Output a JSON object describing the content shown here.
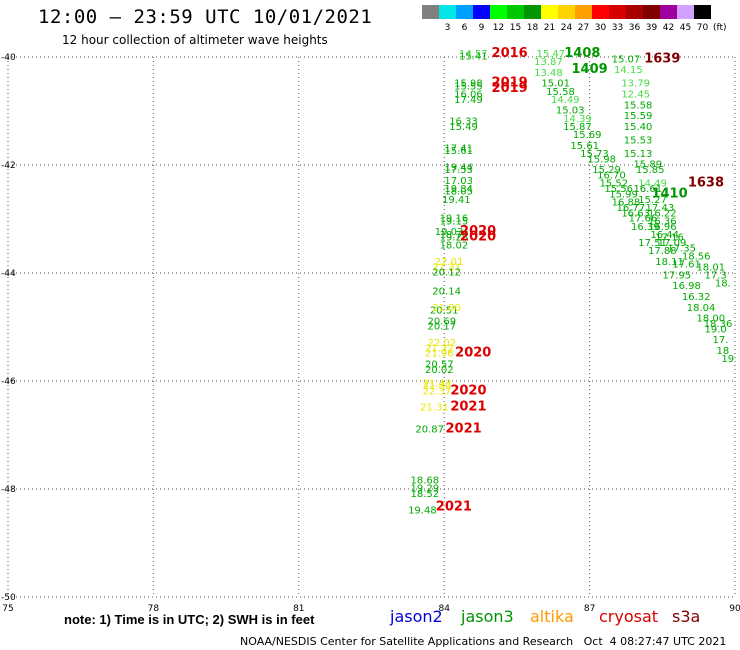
{
  "header": {
    "title": "12:00 – 23:59 UTC 10/01/2021",
    "subtitle": "12 hour collection of altimeter wave heights"
  },
  "legend": {
    "unit": "(ft)",
    "bins": [
      {
        "label": "",
        "color": "#808080"
      },
      {
        "label": "3",
        "color": "#00e5e5"
      },
      {
        "label": "6",
        "color": "#00a0ff"
      },
      {
        "label": "9",
        "color": "#0000ff"
      },
      {
        "label": "12",
        "color": "#00ff00"
      },
      {
        "label": "15",
        "color": "#00c800"
      },
      {
        "label": "18",
        "color": "#009600"
      },
      {
        "label": "21",
        "color": "#ffff00"
      },
      {
        "label": "24",
        "color": "#ffd200"
      },
      {
        "label": "27",
        "color": "#ffa000"
      },
      {
        "label": "30",
        "color": "#ff0000"
      },
      {
        "label": "33",
        "color": "#d70000"
      },
      {
        "label": "36",
        "color": "#aa0000"
      },
      {
        "label": "39",
        "color": "#800000"
      },
      {
        "label": "42",
        "color": "#a000a0"
      },
      {
        "label": "45",
        "color": "#d2a0ff"
      },
      {
        "label": "70",
        "color": "#000000"
      }
    ]
  },
  "axes": {
    "y_ticks": [
      "-40",
      "-42",
      "-44",
      "-46",
      "-48",
      "-50"
    ],
    "x_ticks": [
      "75",
      "78",
      "81",
      "84",
      "87",
      "90"
    ]
  },
  "map": {
    "lon_range": [
      75,
      90
    ],
    "lat_range": [
      -50,
      -40
    ]
  },
  "swh_labels": [
    {
      "text": "14.57",
      "lat": -40.0,
      "lon": 84.6,
      "color": "#44dd44"
    },
    {
      "text": "15.41",
      "lat": -40.05,
      "lon": 84.6,
      "color": "#00aa00"
    },
    {
      "text": "2016",
      "lat": -40.0,
      "lon": 85.35,
      "color": "#dd0000",
      "bold": true
    },
    {
      "text": "15.47",
      "lat": -40.0,
      "lon": 86.2,
      "color": "#44dd44"
    },
    {
      "text": "13.87",
      "lat": -40.15,
      "lon": 86.15,
      "color": "#44dd44"
    },
    {
      "text": "1408",
      "lat": -40.0,
      "lon": 86.85,
      "color": "#009600",
      "bold": true
    },
    {
      "text": "15.07",
      "lat": -40.1,
      "lon": 87.75,
      "color": "#00aa00"
    },
    {
      "text": "1639",
      "lat": -40.1,
      "lon": 88.5,
      "color": "#800000",
      "bold": true
    },
    {
      "text": "13.48",
      "lat": -40.35,
      "lon": 86.15,
      "color": "#44dd44"
    },
    {
      "text": "1409",
      "lat": -40.3,
      "lon": 87.0,
      "color": "#009600",
      "bold": true
    },
    {
      "text": "14.15",
      "lat": -40.3,
      "lon": 87.8,
      "color": "#44dd44"
    },
    {
      "text": "15.01",
      "lat": -40.55,
      "lon": 86.3,
      "color": "#00aa00"
    },
    {
      "text": "13.79",
      "lat": -40.55,
      "lon": 87.95,
      "color": "#44dd44"
    },
    {
      "text": "15.98",
      "lat": -40.55,
      "lon": 84.5,
      "color": "#00aa00"
    },
    {
      "text": "2019",
      "lat": -40.55,
      "lon": 85.35,
      "color": "#dd0000",
      "bold": true
    },
    {
      "text": "15.55",
      "lat": -40.6,
      "lon": 84.5,
      "color": "#00aa00"
    },
    {
      "text": "2019",
      "lat": -40.65,
      "lon": 85.35,
      "color": "#dd0000",
      "bold": true
    },
    {
      "text": "15.58",
      "lat": -40.7,
      "lon": 86.4,
      "color": "#00aa00"
    },
    {
      "text": "12.45",
      "lat": -40.75,
      "lon": 87.95,
      "color": "#44dd44"
    },
    {
      "text": "16.06",
      "lat": -40.75,
      "lon": 84.5,
      "color": "#00aa00"
    },
    {
      "text": "17.49",
      "lat": -40.85,
      "lon": 84.5,
      "color": "#00aa00"
    },
    {
      "text": "14.49",
      "lat": -40.85,
      "lon": 86.5,
      "color": "#44dd44"
    },
    {
      "text": "15.58",
      "lat": -40.95,
      "lon": 88.0,
      "color": "#00aa00"
    },
    {
      "text": "15.03",
      "lat": -41.05,
      "lon": 86.6,
      "color": "#00aa00"
    },
    {
      "text": "15.59",
      "lat": -41.15,
      "lon": 88.0,
      "color": "#00aa00"
    },
    {
      "text": "16.33",
      "lat": -41.25,
      "lon": 84.4,
      "color": "#00aa00"
    },
    {
      "text": "14.39",
      "lat": -41.2,
      "lon": 86.75,
      "color": "#44dd44"
    },
    {
      "text": "15.49",
      "lat": -41.35,
      "lon": 84.4,
      "color": "#00aa00"
    },
    {
      "text": "15.87",
      "lat": -41.35,
      "lon": 86.75,
      "color": "#00aa00"
    },
    {
      "text": "15.40",
      "lat": -41.35,
      "lon": 88.0,
      "color": "#00aa00"
    },
    {
      "text": "15.69",
      "lat": -41.5,
      "lon": 86.95,
      "color": "#00aa00"
    },
    {
      "text": "15.53",
      "lat": -41.6,
      "lon": 88.0,
      "color": "#00aa00"
    },
    {
      "text": "15.61",
      "lat": -41.7,
      "lon": 86.9,
      "color": "#00aa00"
    },
    {
      "text": "17.41",
      "lat": -41.75,
      "lon": 84.3,
      "color": "#00aa00"
    },
    {
      "text": "15.61",
      "lat": -41.8,
      "lon": 84.3,
      "color": "#00aa00"
    },
    {
      "text": "15.73",
      "lat": -41.85,
      "lon": 87.1,
      "color": "#00aa00"
    },
    {
      "text": "15.13",
      "lat": -41.85,
      "lon": 88.0,
      "color": "#00aa00"
    },
    {
      "text": "15.98",
      "lat": -41.95,
      "lon": 87.25,
      "color": "#00aa00"
    },
    {
      "text": "15.89",
      "lat": -42.05,
      "lon": 88.2,
      "color": "#00aa00"
    },
    {
      "text": "19.44",
      "lat": -42.1,
      "lon": 84.3,
      "color": "#00aa00"
    },
    {
      "text": "15.29",
      "lat": -42.15,
      "lon": 87.35,
      "color": "#00aa00"
    },
    {
      "text": "17.53",
      "lat": -42.15,
      "lon": 84.3,
      "color": "#00aa00"
    },
    {
      "text": "15.85",
      "lat": -42.15,
      "lon": 88.25,
      "color": "#00aa00"
    },
    {
      "text": "16.70",
      "lat": -42.25,
      "lon": 87.45,
      "color": "#00aa00"
    },
    {
      "text": "1638",
      "lat": -42.4,
      "lon": 89.4,
      "color": "#800000",
      "bold": true
    },
    {
      "text": "17.03",
      "lat": -42.35,
      "lon": 84.3,
      "color": "#00aa00"
    },
    {
      "text": "15.52",
      "lat": -42.4,
      "lon": 87.5,
      "color": "#00aa00"
    },
    {
      "text": "14.49",
      "lat": -42.4,
      "lon": 88.3,
      "color": "#44dd44"
    },
    {
      "text": "19.84",
      "lat": -42.5,
      "lon": 84.3,
      "color": "#00aa00"
    },
    {
      "text": "15.56",
      "lat": -42.5,
      "lon": 87.6,
      "color": "#00aa00"
    },
    {
      "text": "16.61",
      "lat": -42.5,
      "lon": 88.2,
      "color": "#009600"
    },
    {
      "text": "18.05",
      "lat": -42.55,
      "lon": 84.3,
      "color": "#00aa00"
    },
    {
      "text": "15.99",
      "lat": -42.6,
      "lon": 87.7,
      "color": "#00aa00"
    },
    {
      "text": "1410",
      "lat": -42.6,
      "lon": 88.65,
      "color": "#009600",
      "bold": true
    },
    {
      "text": "15.27",
      "lat": -42.7,
      "lon": 88.3,
      "color": "#00aa00"
    },
    {
      "text": "16.88",
      "lat": -42.75,
      "lon": 87.75,
      "color": "#00aa00"
    },
    {
      "text": "19.41",
      "lat": -42.7,
      "lon": 84.25,
      "color": "#00aa00"
    },
    {
      "text": "16.77",
      "lat": -42.85,
      "lon": 87.85,
      "color": "#00aa00"
    },
    {
      "text": "17.43",
      "lat": -42.85,
      "lon": 88.45,
      "color": "#00aa00"
    },
    {
      "text": "16.63",
      "lat": -42.95,
      "lon": 87.95,
      "color": "#00aa00"
    },
    {
      "text": "16.22",
      "lat": -42.95,
      "lon": 88.5,
      "color": "#00aa00"
    },
    {
      "text": "19.16",
      "lat": -43.05,
      "lon": 84.2,
      "color": "#00aa00"
    },
    {
      "text": "17.66",
      "lat": -43.05,
      "lon": 88.1,
      "color": "#00aa00"
    },
    {
      "text": "19.15",
      "lat": -43.1,
      "lon": 84.2,
      "color": "#00aa00"
    },
    {
      "text": "16.36",
      "lat": -43.1,
      "lon": 88.5,
      "color": "#00aa00"
    },
    {
      "text": "16.39",
      "lat": -43.2,
      "lon": 88.15,
      "color": "#00aa00"
    },
    {
      "text": "16.96",
      "lat": -43.2,
      "lon": 88.5,
      "color": "#00aa00"
    },
    {
      "text": "19.03",
      "lat": -43.3,
      "lon": 84.1,
      "color": "#00aa00"
    },
    {
      "text": "2020",
      "lat": -43.3,
      "lon": 84.7,
      "color": "#dd0000",
      "bold": true
    },
    {
      "text": "18.77",
      "lat": -43.35,
      "lon": 84.2,
      "color": "#00aa00"
    },
    {
      "text": "19.28",
      "lat": -43.4,
      "lon": 84.2,
      "color": "#00aa00"
    },
    {
      "text": "2020",
      "lat": -43.4,
      "lon": 84.7,
      "color": "#dd0000",
      "bold": true
    },
    {
      "text": "16.44",
      "lat": -43.35,
      "lon": 88.55,
      "color": "#00aa00"
    },
    {
      "text": "17.16",
      "lat": -43.4,
      "lon": 88.65,
      "color": "#00aa00"
    },
    {
      "text": "17.09",
      "lat": -43.5,
      "lon": 88.7,
      "color": "#00aa00"
    },
    {
      "text": "17.51",
      "lat": -43.5,
      "lon": 88.3,
      "color": "#00aa00"
    },
    {
      "text": "18.02",
      "lat": -43.55,
      "lon": 84.2,
      "color": "#00aa00"
    },
    {
      "text": "17.35",
      "lat": -43.6,
      "lon": 88.9,
      "color": "#00aa00"
    },
    {
      "text": "17.88",
      "lat": -43.65,
      "lon": 88.5,
      "color": "#00aa00"
    },
    {
      "text": "18.56",
      "lat": -43.75,
      "lon": 89.2,
      "color": "#00aa00"
    },
    {
      "text": "18.11",
      "lat": -43.85,
      "lon": 88.65,
      "color": "#00aa00"
    },
    {
      "text": "17.61",
      "lat": -43.9,
      "lon": 89.0,
      "color": "#00aa00"
    },
    {
      "text": "22.01",
      "lat": -43.85,
      "lon": 84.1,
      "color": "#e8e800"
    },
    {
      "text": "21.31",
      "lat": -43.95,
      "lon": 84.05,
      "color": "#e8e800"
    },
    {
      "text": "18.01",
      "lat": -43.95,
      "lon": 89.5,
      "color": "#00aa00"
    },
    {
      "text": "20.12",
      "lat": -44.05,
      "lon": 84.05,
      "color": "#00aa00"
    },
    {
      "text": "17.95",
      "lat": -44.1,
      "lon": 88.8,
      "color": "#00aa00"
    },
    {
      "text": "17.3",
      "lat": -44.1,
      "lon": 89.6,
      "color": "#00aa00"
    },
    {
      "text": "16.98",
      "lat": -44.3,
      "lon": 89.0,
      "color": "#00aa00"
    },
    {
      "text": "18.",
      "lat": -44.25,
      "lon": 89.75,
      "color": "#00aa00"
    },
    {
      "text": "20.14",
      "lat": -44.4,
      "lon": 84.05,
      "color": "#00aa00"
    },
    {
      "text": "16.32",
      "lat": -44.5,
      "lon": 89.2,
      "color": "#00aa00"
    },
    {
      "text": "20.51",
      "lat": -44.75,
      "lon": 84.0,
      "color": "#00aa00"
    },
    {
      "text": "18.04",
      "lat": -44.7,
      "lon": 89.3,
      "color": "#00aa00"
    },
    {
      "text": "21.80",
      "lat": -44.7,
      "lon": 84.05,
      "color": "#e8e800"
    },
    {
      "text": "18.00",
      "lat": -44.9,
      "lon": 89.5,
      "color": "#00aa00"
    },
    {
      "text": "20.69",
      "lat": -44.95,
      "lon": 83.95,
      "color": "#00aa00"
    },
    {
      "text": "18.36",
      "lat": -45.0,
      "lon": 89.65,
      "color": "#00aa00"
    },
    {
      "text": "20.17",
      "lat": -45.05,
      "lon": 83.95,
      "color": "#00aa00"
    },
    {
      "text": "19.0",
      "lat": -45.1,
      "lon": 89.6,
      "color": "#00aa00"
    },
    {
      "text": "17.",
      "lat": -45.3,
      "lon": 89.7,
      "color": "#00aa00"
    },
    {
      "text": "22.02",
      "lat": -45.35,
      "lon": 83.95,
      "color": "#e8e800"
    },
    {
      "text": "21.32",
      "lat": -45.45,
      "lon": 83.9,
      "color": "#e8e800"
    },
    {
      "text": "21.96",
      "lat": -45.55,
      "lon": 83.9,
      "color": "#e8e800"
    },
    {
      "text": "18",
      "lat": -45.5,
      "lon": 89.75,
      "color": "#00aa00"
    },
    {
      "text": "2020",
      "lat": -45.55,
      "lon": 84.6,
      "color": "#dd0000",
      "bold": true
    },
    {
      "text": "19",
      "lat": -45.65,
      "lon": 89.85,
      "color": "#00aa00"
    },
    {
      "text": "20.57",
      "lat": -45.75,
      "lon": 83.9,
      "color": "#00aa00"
    },
    {
      "text": "20.02",
      "lat": -45.85,
      "lon": 83.9,
      "color": "#00aa00"
    },
    {
      "text": "21.43",
      "lat": -46.1,
      "lon": 83.85,
      "color": "#e8e800"
    },
    {
      "text": "21.80",
      "lat": -46.15,
      "lon": 83.85,
      "color": "#e8e800"
    },
    {
      "text": "22.37",
      "lat": -46.25,
      "lon": 83.85,
      "color": "#e8e800"
    },
    {
      "text": "2020",
      "lat": -46.25,
      "lon": 84.5,
      "color": "#dd0000",
      "bold": true
    },
    {
      "text": "21.31",
      "lat": -46.55,
      "lon": 83.8,
      "color": "#e8e800"
    },
    {
      "text": "2021",
      "lat": -46.55,
      "lon": 84.5,
      "color": "#dd0000",
      "bold": true
    },
    {
      "text": "20.87",
      "lat": -46.95,
      "lon": 83.7,
      "color": "#00aa00"
    },
    {
      "text": "2021",
      "lat": -46.95,
      "lon": 84.4,
      "color": "#dd0000",
      "bold": true
    },
    {
      "text": "18.68",
      "lat": -47.9,
      "lon": 83.6,
      "color": "#00aa00"
    },
    {
      "text": "19.29",
      "lat": -48.05,
      "lon": 83.6,
      "color": "#00aa00"
    },
    {
      "text": "18.52",
      "lat": -48.15,
      "lon": 83.6,
      "color": "#00aa00"
    },
    {
      "text": "19.48",
      "lat": -48.45,
      "lon": 83.55,
      "color": "#00aa00"
    },
    {
      "text": "2021",
      "lat": -48.4,
      "lon": 84.2,
      "color": "#dd0000",
      "bold": true
    }
  ],
  "footer": {
    "note": "note: 1) Time is in UTC; 2) SWH is in feet",
    "satellites": [
      {
        "name": "jason2",
        "color": "#0000dd"
      },
      {
        "name": "jason3",
        "color": "#009600"
      },
      {
        "name": "altika",
        "color": "#ff9900"
      },
      {
        "name": "cryosat",
        "color": "#dd0000"
      },
      {
        "name": "s3a",
        "color": "#800000"
      }
    ],
    "credit": "NOAA/NESDIS Center for Satellite Applications and Research   Oct  4 08:27:47 UTC 2021"
  }
}
